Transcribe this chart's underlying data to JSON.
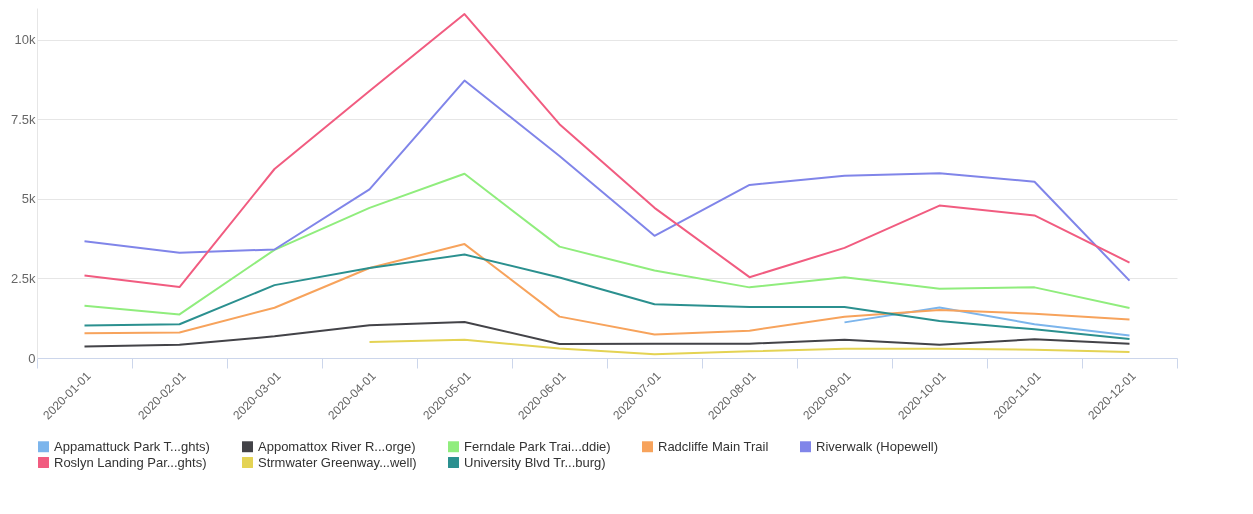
{
  "chart_data": {
    "type": "line",
    "categories": [
      "2020-01-01",
      "2020-02-01",
      "2020-03-01",
      "2020-04-01",
      "2020-05-01",
      "2020-06-01",
      "2020-07-01",
      "2020-08-01",
      "2020-09-01",
      "2020-10-01",
      "2020-11-01",
      "2020-12-01"
    ],
    "ylim": [
      0,
      11000
    ],
    "yticks": [
      0,
      {
        "value": 2500,
        "label": "2.5k"
      },
      {
        "value": 5000,
        "label": "5k"
      },
      {
        "value": 7500,
        "label": "7.5k"
      },
      {
        "value": 10000,
        "label": "10k"
      }
    ],
    "grid": "y",
    "legend": "bottom",
    "marker": "none",
    "line_style": "solid",
    "series": [
      {
        "name": "Appamattuck Park T...ghts)",
        "color": "#7cb5ec",
        "values": [
          null,
          null,
          null,
          null,
          null,
          null,
          null,
          null,
          1120,
          1590,
          1060,
          710
        ]
      },
      {
        "name": "Appomattox River R...orge)",
        "color": "#434348",
        "values": [
          360,
          420,
          680,
          1030,
          1130,
          440,
          450,
          450,
          570,
          420,
          590,
          450
        ]
      },
      {
        "name": "Ferndale Park Trai...ddie)",
        "color": "#90ed7d",
        "values": [
          1640,
          1370,
          3400,
          4720,
          5790,
          3500,
          2750,
          2220,
          2540,
          2180,
          2220,
          1570
        ]
      },
      {
        "name": "Radcliffe Main Trail",
        "color": "#f7a35c",
        "values": [
          780,
          800,
          1580,
          2830,
          3580,
          1300,
          740,
          860,
          1300,
          1510,
          1390,
          1210
        ]
      },
      {
        "name": "Riverwalk (Hopewell)",
        "color": "#8085e9",
        "values": [
          3670,
          3310,
          3410,
          5300,
          8720,
          6350,
          3840,
          5440,
          5730,
          5810,
          5540,
          2430
        ]
      },
      {
        "name": "Roslyn Landing Par...ghts)",
        "color": "#f15c80",
        "values": [
          2590,
          2230,
          5940,
          8390,
          10810,
          7350,
          4720,
          2540,
          3460,
          4790,
          4480,
          3000
        ]
      },
      {
        "name": "Strmwater Greenway...well)",
        "color": "#e4d354",
        "values": [
          null,
          null,
          null,
          500,
          570,
          300,
          120,
          210,
          290,
          290,
          260,
          190
        ]
      },
      {
        "name": "University Blvd Tr...burg)",
        "color": "#2b908f",
        "values": [
          1020,
          1060,
          2290,
          2830,
          3250,
          2530,
          1690,
          1600,
          1600,
          1160,
          900,
          600
        ]
      }
    ]
  }
}
